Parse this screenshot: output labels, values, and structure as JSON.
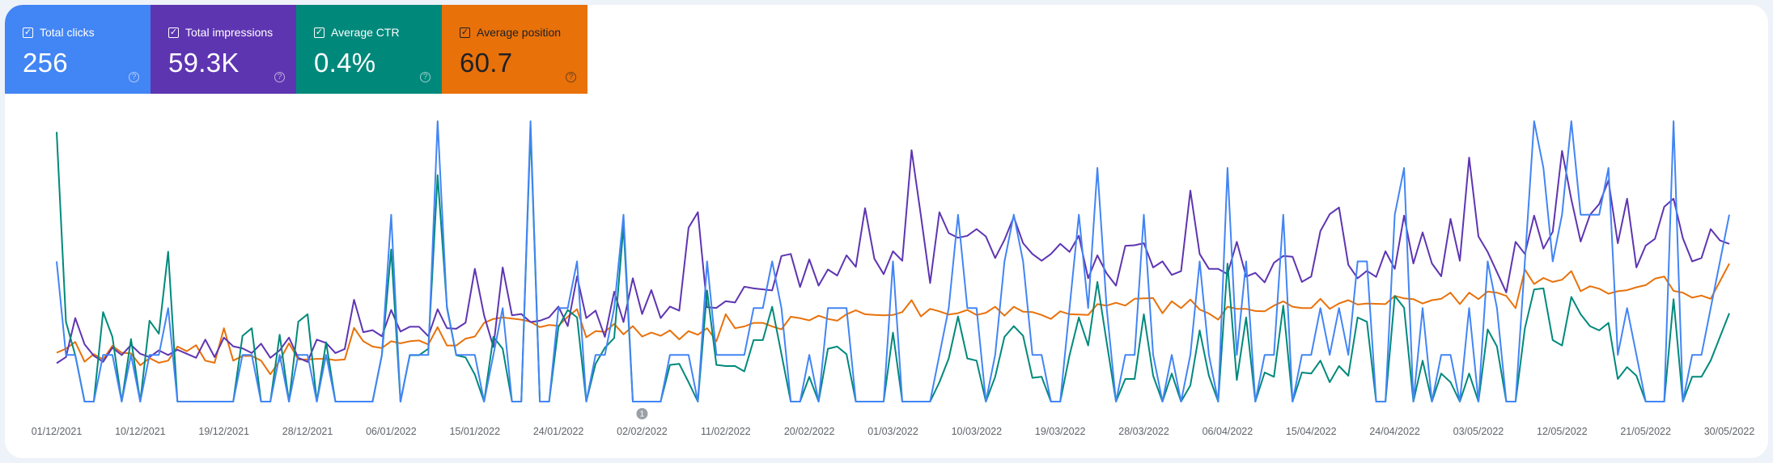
{
  "metrics": [
    {
      "label": "Total clicks",
      "value": "256",
      "color": "#4285f4",
      "checked": true
    },
    {
      "label": "Total impressions",
      "value": "59.3K",
      "color": "#5e35b1",
      "checked": true
    },
    {
      "label": "Average CTR",
      "value": "0.4%",
      "color": "#00897b",
      "checked": true
    },
    {
      "label": "Average position",
      "value": "60.7",
      "color": "#e8710a",
      "checked": true
    }
  ],
  "icons": {
    "checkbox": "check-icon",
    "help": "help-circle-icon"
  },
  "annotation": {
    "label": "1",
    "date": "02/02/2022"
  },
  "chart_data": {
    "type": "line",
    "start_date": "01/12/2021",
    "end_date": "30/05/2022",
    "x_tick_labels": [
      "01/12/2021",
      "10/12/2021",
      "19/12/2021",
      "28/12/2021",
      "06/01/2022",
      "15/01/2022",
      "24/01/2022",
      "02/02/2022",
      "11/02/2022",
      "20/02/2022",
      "01/03/2022",
      "10/03/2022",
      "19/03/2022",
      "28/03/2022",
      "06/04/2022",
      "15/04/2022",
      "24/04/2022",
      "03/05/2022",
      "12/05/2022",
      "21/05/2022",
      "30/05/2022"
    ],
    "x_tick_every_days": 9,
    "grid": false,
    "series": [
      {
        "name": "Average position",
        "color": "#e8710a",
        "ylim": [
          2,
          80
        ],
        "inverted": true,
        "values": [
          66.4,
          65.3,
          63.4,
          68.9,
          66.8,
          68.3,
          64.5,
          66.4,
          66.6,
          69.9,
          67.9,
          69.2,
          68.6,
          64.7,
          66.0,
          64.3,
          68.6,
          69.2,
          59.6,
          68.6,
          67.3,
          67.3,
          68.6,
          72.4,
          68.6,
          63.8,
          68.3,
          68.3,
          68.1,
          68.1,
          68.5,
          68.3,
          59.5,
          63.2,
          64.7,
          65.1,
          63.2,
          63.8,
          63.2,
          63.0,
          64.1,
          59.3,
          64.4,
          64.4,
          62.5,
          61.9,
          58.1,
          57.0,
          56.6,
          56.9,
          57.2,
          57.8,
          59.3,
          58.7,
          58.9,
          56.4,
          54.3,
          62.1,
          60.4,
          60.6,
          58.4,
          61.3,
          59.0,
          61.9,
          60.8,
          61.7,
          60.2,
          62.7,
          60.4,
          61.4,
          59.6,
          63.2,
          55.7,
          59.6,
          59.1,
          58.1,
          58.1,
          59.1,
          59.9,
          56.4,
          56.8,
          57.4,
          56.1,
          57.0,
          57.5,
          55.7,
          54.6,
          55.7,
          55.9,
          56.0,
          55.9,
          55.1,
          51.8,
          56.3,
          54.2,
          54.9,
          55.8,
          55.4,
          54.5,
          55.9,
          55.3,
          53.6,
          56.1,
          53.6,
          55.0,
          55.1,
          55.9,
          57.0,
          54.9,
          55.7,
          55.8,
          55.9,
          52.9,
          53.3,
          52.5,
          53.3,
          51.4,
          51.3,
          51.2,
          55.4,
          52.1,
          54.0,
          51.6,
          54.4,
          55.5,
          57.2,
          53.6,
          54.2,
          54.2,
          54.8,
          54.9,
          53.3,
          52.1,
          53.6,
          54.0,
          54.0,
          51.4,
          54.2,
          52.7,
          51.8,
          53.0,
          52.7,
          52.8,
          52.9,
          50.6,
          51.3,
          51.5,
          52.7,
          51.8,
          51.4,
          49.7,
          52.9,
          49.7,
          51.5,
          49.4,
          49.7,
          50.6,
          54.0,
          43.3,
          47.3,
          45.6,
          46.7,
          46.1,
          43.7,
          49.3,
          47.9,
          48.6,
          50.0,
          49.3,
          49.0,
          48.2,
          47.6,
          45.8,
          45.2,
          49.2,
          49.7,
          51.1,
          50.5,
          51.4,
          46.5,
          41.6
        ]
      },
      {
        "name": "Total impressions",
        "color": "#5e35b1",
        "ylim": [
          0,
          832
        ],
        "values": [
          114,
          132,
          248,
          170,
          136,
          118,
          160,
          138,
          168,
          142,
          132,
          152,
          138,
          154,
          142,
          130,
          184,
          132,
          190,
          164,
          158,
          144,
          172,
          130,
          152,
          190,
          130,
          118,
          184,
          174,
          144,
          156,
          302,
          206,
          212,
          194,
          272,
          208,
          222,
          222,
          194,
          274,
          218,
          216,
          234,
          394,
          256,
          162,
          398,
          256,
          260,
          236,
          240,
          250,
          282,
          224,
          372,
          248,
          270,
          192,
          326,
          236,
          366,
          260,
          331,
          248,
          282,
          270,
          516,
          562,
          280,
          278,
          298,
          294,
          341,
          336,
          333,
          330,
          432,
          438,
          340,
          422,
          344,
          392,
          374,
          434,
          400,
          574,
          424,
          378,
          446,
          418,
          746,
          552,
          352,
          562,
          500,
          486,
          492,
          512,
          490,
          426,
          480,
          548,
          470,
          438,
          418,
          438,
          468,
          444,
          492,
          366,
          434,
          380,
          344,
          462,
          464,
          470,
          398,
          416,
          376,
          387,
          626,
          438,
          394,
          394,
          378,
          474,
          371,
          382,
          354,
          412,
          432,
          430,
          355,
          371,
          506,
          556,
          576,
          406,
          366,
          388,
          370,
          446,
          394,
          552,
          410,
          502,
          410,
          372,
          542,
          418,
          724,
          490,
          444,
          384,
          324,
          474,
          438,
          552,
          454,
          504,
          744,
          600,
          475,
          554,
          586,
          656,
          470,
          602,
          398,
          463,
          483,
          578,
          602,
          485,
          416,
          426,
          512,
          478,
          468
        ]
      },
      {
        "name": "Average CTR",
        "color": "#00897b",
        "ylim": [
          0,
          2.6
        ],
        "unit": "%",
        "values": [
          2.5,
          0.74,
          0.43,
          0,
          0,
          0.83,
          0.6,
          0,
          0.58,
          0,
          0.75,
          0.63,
          1.39,
          0,
          0,
          0,
          0,
          0,
          0,
          0,
          0.61,
          0.68,
          0,
          0,
          0.62,
          0,
          0.74,
          0.81,
          0,
          0.55,
          0,
          0,
          0,
          0,
          0,
          0.43,
          1.41,
          0,
          0.43,
          0.43,
          0.49,
          2.1,
          0.88,
          0.43,
          0.41,
          0.25,
          0,
          0.6,
          0.49,
          0,
          0,
          2.53,
          0,
          0,
          0.69,
          0.85,
          0.78,
          0,
          0.35,
          0.5,
          0.59,
          1.63,
          0,
          0,
          0,
          0,
          0.34,
          0.35,
          0.18,
          0,
          1.03,
          0.34,
          0.33,
          0.33,
          0.28,
          0.57,
          0.57,
          0.88,
          0.44,
          0,
          0,
          0.23,
          0,
          0.49,
          0.51,
          0.44,
          0,
          0,
          0,
          0,
          0.64,
          0,
          0,
          0,
          0,
          0.18,
          0.4,
          0.79,
          0.4,
          0.38,
          0,
          0.23,
          0.6,
          0.7,
          0.61,
          0.22,
          0.23,
          0,
          0,
          0.43,
          0.78,
          0.52,
          1.11,
          0.55,
          0,
          0.21,
          0.21,
          0.81,
          0.24,
          0,
          0.26,
          0,
          0.15,
          0.66,
          0.24,
          0,
          1.28,
          0.2,
          0.78,
          0,
          0.27,
          0.23,
          0.89,
          0,
          0.27,
          0.26,
          0.38,
          0.18,
          0.33,
          0.24,
          0.78,
          0.74,
          0,
          0,
          0.98,
          0.87,
          0,
          0.38,
          0,
          0.26,
          0.18,
          0,
          0.26,
          0,
          0.67,
          0.51,
          0,
          0,
          0.68,
          1.04,
          1.05,
          0.57,
          0.52,
          0.97,
          0.81,
          0.7,
          0.66,
          0.73,
          0.21,
          0.32,
          0.24,
          0,
          0,
          0,
          0.95,
          0,
          0.23,
          0.23,
          0.38,
          0.6,
          0.82
        ]
      },
      {
        "name": "Total clicks",
        "color": "#4285f4",
        "ylim": [
          0,
          6
        ],
        "values": [
          3,
          1,
          1,
          0,
          0,
          1,
          1,
          0,
          1,
          0,
          1,
          1,
          2,
          0,
          0,
          0,
          0,
          0,
          0,
          0,
          1,
          1,
          0,
          0,
          1,
          0,
          1,
          1,
          0,
          1,
          0,
          0,
          0,
          0,
          0,
          1,
          4,
          0,
          1,
          1,
          1,
          6,
          2,
          1,
          1,
          1,
          0,
          1,
          2,
          0,
          0,
          6,
          0,
          0,
          2,
          2,
          3,
          0,
          1,
          1,
          2,
          4,
          0,
          0,
          0,
          0,
          1,
          1,
          1,
          0,
          3,
          1,
          1,
          1,
          1,
          2,
          2,
          3,
          2,
          0,
          0,
          1,
          0,
          2,
          2,
          2,
          0,
          0,
          0,
          0,
          3,
          0,
          0,
          0,
          0,
          1,
          2,
          4,
          2,
          2,
          0,
          1,
          3,
          4,
          3,
          1,
          1,
          0,
          0,
          2,
          4,
          2,
          5,
          2,
          0,
          1,
          1,
          4,
          1,
          0,
          1,
          0,
          1,
          3,
          1,
          0,
          5,
          1,
          3,
          0,
          1,
          1,
          4,
          0,
          1,
          1,
          2,
          1,
          2,
          1,
          3,
          3,
          0,
          0,
          4,
          5,
          0,
          2,
          0,
          1,
          1,
          0,
          2,
          0,
          3,
          2,
          0,
          0,
          3,
          6,
          5,
          3,
          4,
          6,
          4,
          4,
          4,
          5,
          1,
          2,
          1,
          0,
          0,
          0,
          6,
          0,
          1,
          1,
          2,
          3,
          4
        ]
      }
    ]
  }
}
